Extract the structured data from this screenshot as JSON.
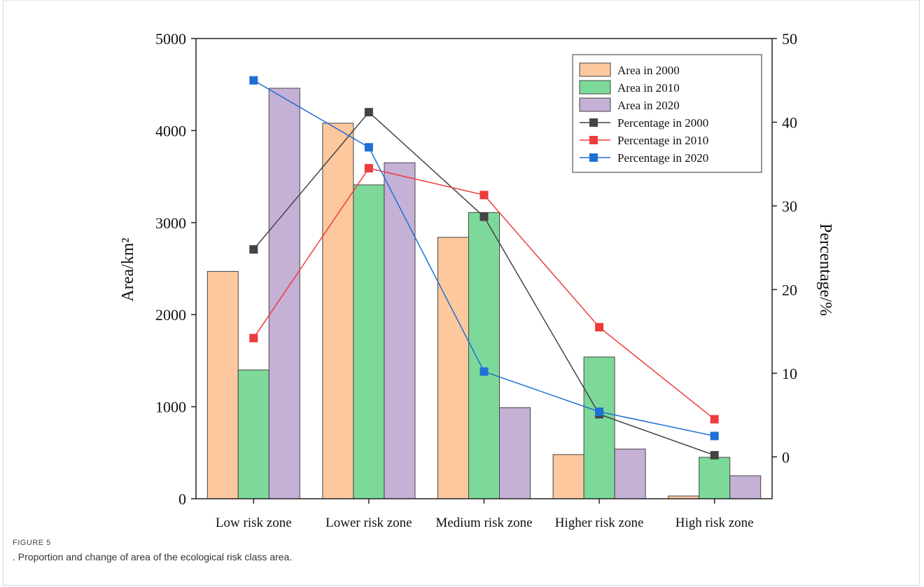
{
  "figure": {
    "label": "FIGURE 5",
    "caption": ". Proportion and change of area of the ecological risk class area."
  },
  "chart_data": {
    "type": "bar",
    "categories": [
      "Low risk zone",
      "Lower risk zone",
      "Medium risk zone",
      "Higher risk zone",
      "High risk zone"
    ],
    "ylabel_left": "Area/km²",
    "ylabel_right": "Percentage/%",
    "ylim_left": [
      0,
      5000
    ],
    "yticks_left": [
      0,
      1000,
      2000,
      3000,
      4000,
      5000
    ],
    "ylim_right": [
      -5,
      50
    ],
    "yticks_right": [
      0,
      10,
      20,
      30,
      40,
      50
    ],
    "bar_series": [
      {
        "name": "Area in 2000",
        "color": "#fdc89e",
        "values": [
          2470,
          4080,
          2840,
          480,
          30
        ]
      },
      {
        "name": "Area in 2010",
        "color": "#7dd99a",
        "values": [
          1400,
          3410,
          3110,
          1540,
          450
        ]
      },
      {
        "name": "Area in 2020",
        "color": "#c5b0d6",
        "values": [
          4460,
          3650,
          990,
          540,
          250
        ]
      }
    ],
    "line_series": [
      {
        "name": "Percentage in 2000",
        "color": "#444444",
        "values": [
          24.8,
          41.2,
          28.7,
          5.1,
          0.2
        ]
      },
      {
        "name": "Percentage in 2010",
        "color": "#ef3b3b",
        "values": [
          14.2,
          34.5,
          31.3,
          15.5,
          4.5
        ]
      },
      {
        "name": "Percentage in 2020",
        "color": "#1f6fd6",
        "values": [
          45.0,
          37.0,
          10.2,
          5.4,
          2.5
        ]
      }
    ],
    "legend_position": "top-right"
  }
}
